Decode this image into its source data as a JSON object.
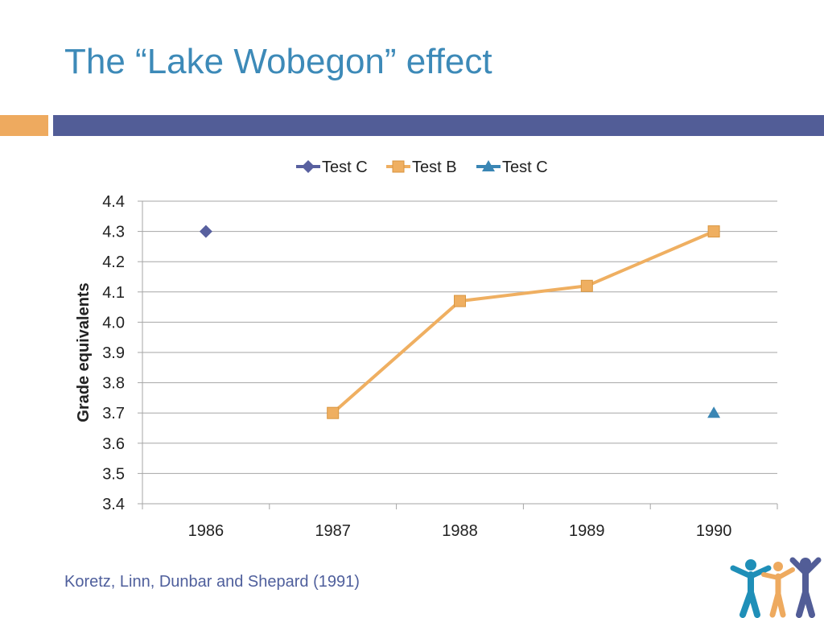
{
  "slide": {
    "title": "The “Lake Wobegon” effect",
    "source": "Koretz, Linn, Dunbar and Shepard (1991)"
  },
  "colors": {
    "title": "#3d8ab8",
    "accent_orange": "#eeaa5f",
    "accent_bar": "#525d97",
    "series_test_c_1986": "#58609f",
    "series_test_b": "#efaf61",
    "series_test_c_1990": "#3a86b4",
    "gridline": "#a6a6a6"
  },
  "chart_data": {
    "type": "line",
    "ylabel": "Grade equivalents",
    "xlabel": "",
    "categories": [
      "1986",
      "1987",
      "1988",
      "1989",
      "1990"
    ],
    "ylim": [
      3.4,
      4.4
    ],
    "ytick_step": 0.1,
    "yticks": [
      "3.4",
      "3.5",
      "3.6",
      "3.7",
      "3.8",
      "3.9",
      "4.0",
      "4.1",
      "4.2",
      "4.3",
      "4.4"
    ],
    "grid": true,
    "legend_position": "top",
    "series": [
      {
        "name": "Test C",
        "marker": "diamond",
        "line": false,
        "color": "#58609f",
        "values": [
          4.3,
          null,
          null,
          null,
          null
        ]
      },
      {
        "name": "Test B",
        "marker": "square",
        "line": true,
        "color": "#efaf61",
        "values": [
          null,
          3.7,
          4.07,
          4.12,
          4.3
        ]
      },
      {
        "name": "Test C",
        "marker": "triangle",
        "line": false,
        "color": "#3a86b4",
        "values": [
          null,
          null,
          null,
          null,
          3.7
        ]
      }
    ]
  }
}
